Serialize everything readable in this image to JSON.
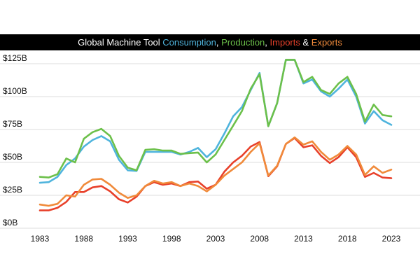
{
  "chart_data": {
    "type": "line",
    "title_parts": [
      {
        "text": "Global Machine Tool ",
        "color": "#ffffff"
      },
      {
        "text": "Consumption",
        "color": "#4fb4dd"
      },
      {
        "text": ", ",
        "color": "#ffffff"
      },
      {
        "text": "Production",
        "color": "#6cc04a"
      },
      {
        "text": ", ",
        "color": "#ffffff"
      },
      {
        "text": "Imports",
        "color": "#e8402a"
      },
      {
        "text": " & ",
        "color": "#ffffff"
      },
      {
        "text": "Exports",
        "color": "#f08a3a"
      }
    ],
    "x": [
      1983,
      1984,
      1985,
      1986,
      1987,
      1988,
      1989,
      1990,
      1991,
      1992,
      1993,
      1994,
      1995,
      1996,
      1997,
      1998,
      1999,
      2000,
      2001,
      2002,
      2003,
      2004,
      2005,
      2006,
      2007,
      2008,
      2009,
      2010,
      2011,
      2012,
      2013,
      2014,
      2015,
      2016,
      2017,
      2018,
      2019,
      2020,
      2021,
      2022,
      2023
    ],
    "xlim": [
      1983,
      2023
    ],
    "ylim": [
      0,
      125
    ],
    "x_ticks": [
      {
        "value": 1983,
        "label": "1983"
      },
      {
        "value": 1988,
        "label": "1988"
      },
      {
        "value": 1993,
        "label": "1993"
      },
      {
        "value": 1998,
        "label": "1998"
      },
      {
        "value": 2003,
        "label": "2003"
      },
      {
        "value": 2008,
        "label": "2008"
      },
      {
        "value": 2013,
        "label": "2013"
      },
      {
        "value": 2018,
        "label": "2018"
      },
      {
        "value": 2023,
        "label": "2023"
      }
    ],
    "y_ticks": [
      {
        "value": 0,
        "label": "$0B"
      },
      {
        "value": 25,
        "label": "$25B"
      },
      {
        "value": 50,
        "label": "$50B"
      },
      {
        "value": 75,
        "label": "$75B"
      },
      {
        "value": 100,
        "label": "$100B"
      },
      {
        "value": 125,
        "label": "$125B"
      }
    ],
    "grid": true,
    "series": [
      {
        "name": "Consumption",
        "color": "#4fb4dd",
        "values": [
          34.5,
          35,
          39,
          48,
          53,
          62,
          67,
          70,
          66,
          52,
          44,
          43.5,
          58,
          58,
          58,
          58,
          56,
          58,
          61,
          54,
          60,
          72,
          85,
          92,
          105,
          118,
          77.5,
          95,
          128,
          128,
          110,
          113,
          104,
          100,
          106,
          113,
          100,
          79.5,
          89,
          82,
          78.5
        ]
      },
      {
        "name": "Production",
        "color": "#6cc04a",
        "values": [
          39,
          38.5,
          41,
          53,
          50,
          68,
          73,
          75.5,
          70,
          55,
          46,
          44,
          59.5,
          60,
          59,
          59,
          56.5,
          57,
          57.5,
          50,
          56,
          67,
          78,
          89,
          106,
          117,
          77.5,
          95,
          128,
          128,
          111,
          115,
          105,
          102,
          110,
          115,
          102,
          81,
          94,
          86,
          85
        ]
      },
      {
        "name": "Imports",
        "color": "#e8402a",
        "values": [
          13.5,
          13.5,
          15.5,
          20,
          27.5,
          27.5,
          31,
          32,
          28,
          22,
          19.5,
          24,
          32,
          35,
          33,
          34,
          32,
          35,
          35.5,
          30,
          33,
          43,
          50,
          55,
          62,
          65.5,
          39.5,
          47,
          64,
          68.5,
          61.5,
          63,
          55,
          49.5,
          54,
          61.5,
          54,
          39,
          42,
          38.5,
          38
        ]
      },
      {
        "name": "Exports",
        "color": "#f08a3a",
        "values": [
          18,
          17,
          18.5,
          25,
          24,
          33,
          37,
          37.5,
          33,
          27,
          23,
          25,
          32,
          36,
          34,
          35,
          32,
          34,
          32,
          28,
          33,
          40,
          45,
          50,
          58,
          64.5,
          40,
          47.5,
          64,
          69,
          63.5,
          66,
          58,
          52,
          56,
          62.5,
          56,
          40.5,
          47,
          42,
          44.5
        ]
      }
    ]
  }
}
